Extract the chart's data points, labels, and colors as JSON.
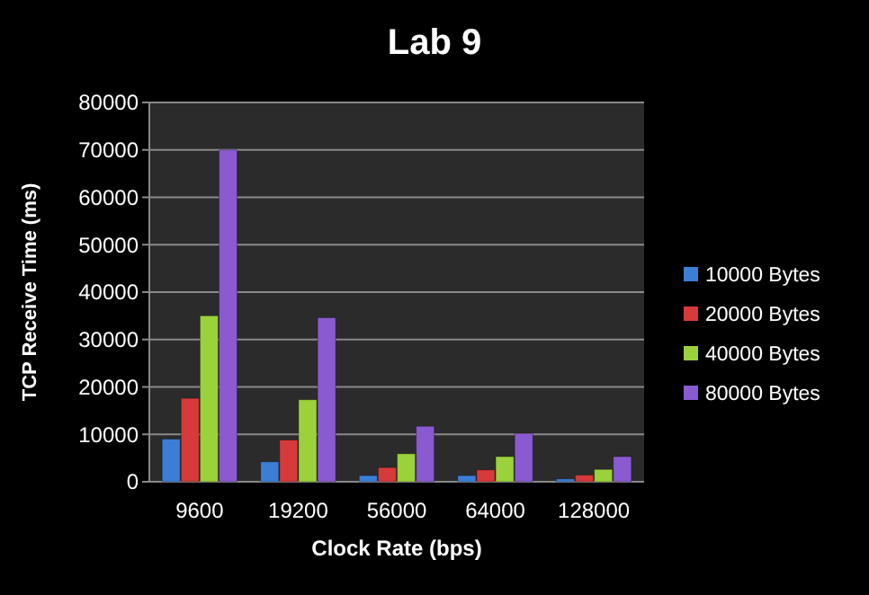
{
  "chart_data": {
    "type": "bar",
    "title": "Lab 9",
    "xlabel": "Clock Rate (bps)",
    "ylabel": "TCP Receive Time (ms)",
    "categories": [
      "9600",
      "19200",
      "56000",
      "64000",
      "128000"
    ],
    "series": [
      {
        "name": "10000 Bytes",
        "color": "#3a7fd5",
        "values": [
          9000,
          4200,
          1300,
          1300,
          600
        ]
      },
      {
        "name": "20000 Bytes",
        "color": "#d63a3a",
        "values": [
          17600,
          8800,
          3000,
          2500,
          1400
        ]
      },
      {
        "name": "40000 Bytes",
        "color": "#9bd13a",
        "values": [
          35000,
          17300,
          5900,
          5300,
          2600
        ]
      },
      {
        "name": "80000 Bytes",
        "color": "#8a5ad0",
        "values": [
          70000,
          34600,
          11700,
          10200,
          5300
        ]
      }
    ],
    "ylim": [
      0,
      80000
    ],
    "yticks": [
      0,
      10000,
      20000,
      30000,
      40000,
      50000,
      60000,
      70000,
      80000
    ],
    "grid": "y",
    "legend": "right"
  }
}
